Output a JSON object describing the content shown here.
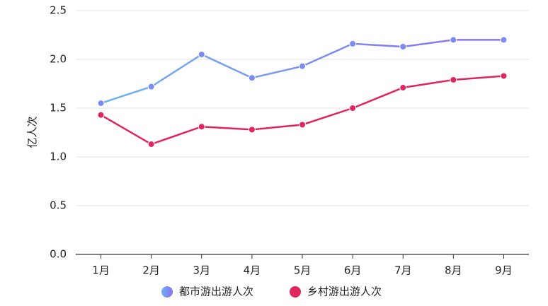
{
  "chart_data": {
    "type": "line",
    "y_label": "亿人次",
    "categories": [
      "1月",
      "2月",
      "3月",
      "4月",
      "5月",
      "6月",
      "7月",
      "8月",
      "9月"
    ],
    "series": [
      {
        "name": "都市游出游人次",
        "color": "#7a8cf2",
        "values": [
          1.55,
          1.72,
          2.05,
          1.81,
          1.93,
          2.16,
          2.13,
          2.2,
          2.2
        ]
      },
      {
        "name": "乡村游出游人次",
        "color": "#e0245e",
        "values": [
          1.43,
          1.13,
          1.31,
          1.28,
          1.33,
          1.5,
          1.71,
          1.79,
          1.83
        ]
      }
    ],
    "ylim": [
      0,
      2.5
    ],
    "yticks": [
      {
        "value": 0,
        "label": "0.0"
      },
      0.5,
      {
        "value": 1,
        "label": "1.0"
      },
      1.5,
      {
        "value": 2,
        "label": "2.0"
      },
      2.5
    ],
    "grid": true
  }
}
